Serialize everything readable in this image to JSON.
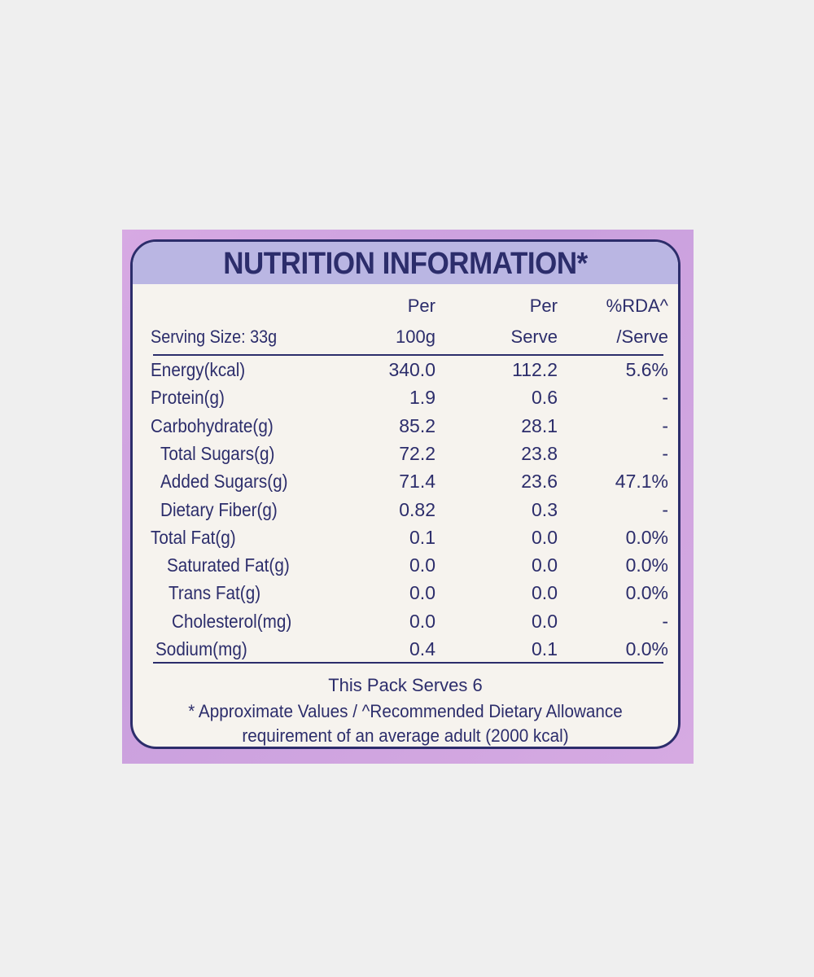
{
  "title": "NUTRITION INFORMATION*",
  "header": {
    "serving_size": "Serving Size: 33g",
    "col1_line1": "Per",
    "col1_line2": "100g",
    "col2_line1": "Per",
    "col2_line2": "Serve",
    "col3_line1": "%RDA^",
    "col3_line2": "/Serve"
  },
  "rows": [
    {
      "label": "Energy(kcal)",
      "per_100g": "340.0",
      "per_serve": "112.2",
      "rda": "5.6%"
    },
    {
      "label": "Protein(g)",
      "per_100g": "1.9",
      "per_serve": "0.6",
      "rda": "-"
    },
    {
      "label": "Carbohydrate(g)",
      "per_100g": "85.2",
      "per_serve": "28.1",
      "rda": "-"
    },
    {
      "label": "Total Sugars(g)",
      "per_100g": "72.2",
      "per_serve": "23.8",
      "rda": "-"
    },
    {
      "label": "Added Sugars(g)",
      "per_100g": "71.4",
      "per_serve": "23.6",
      "rda": "47.1%"
    },
    {
      "label": "Dietary Fiber(g)",
      "per_100g": "0.82",
      "per_serve": "0.3",
      "rda": "-"
    },
    {
      "label": "Total Fat(g)",
      "per_100g": "0.1",
      "per_serve": "0.0",
      "rda": "0.0%"
    },
    {
      "label": "Saturated Fat(g)",
      "per_100g": "0.0",
      "per_serve": "0.0",
      "rda": "0.0%"
    },
    {
      "label": "Trans Fat(g)",
      "per_100g": "0.0",
      "per_serve": "0.0",
      "rda": "0.0%"
    },
    {
      "label": "Cholesterol(mg)",
      "per_100g": "0.0",
      "per_serve": "0.0",
      "rda": "-"
    },
    {
      "label": "Sodium(mg)",
      "per_100g": "0.4",
      "per_serve": "0.1",
      "rda": "0.0%"
    }
  ],
  "footer": {
    "serves": "This Pack Serves 6",
    "note_line1": "* Approximate Values / ^Recommended Dietary Allowance",
    "note_line2": "requirement of an average adult (2000 kcal)"
  },
  "colors": {
    "ink": "#2c2d6b",
    "title_band": "#bab6e3",
    "pack_purple": "#d0a4e0",
    "panel": "#f6f3ee",
    "background": "#efefef"
  }
}
